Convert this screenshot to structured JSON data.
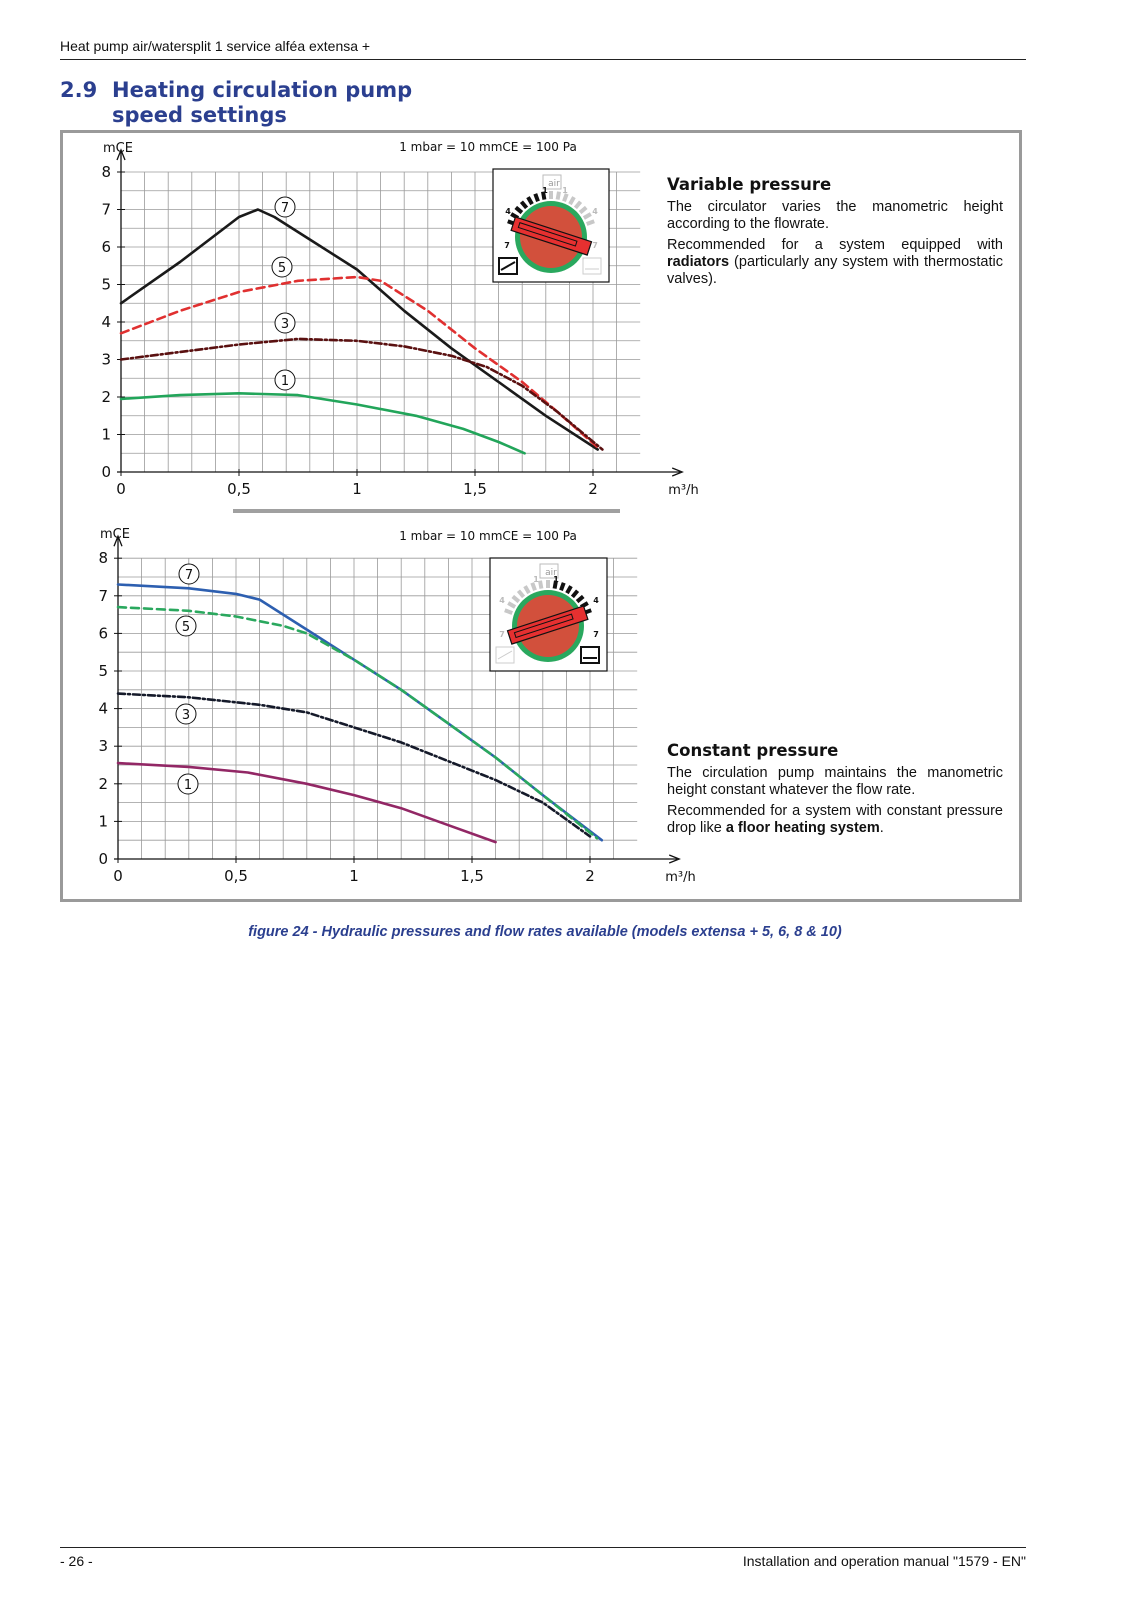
{
  "header": {
    "title": "Heat pump air/watersplit 1 service alféa extensa +"
  },
  "section": {
    "number": "2.9",
    "title_line1": "Heating circulation pump",
    "title_line2": "speed settings"
  },
  "variable": {
    "heading": "Variable pressure",
    "p1": "The circulator varies the manometric height according to the flowrate.",
    "p2_pre": "Recommended for a system equipped with ",
    "p2_bold": "radiators",
    "p2_post": " (particularly any system with thermostatic valves)."
  },
  "constant": {
    "heading": "Constant pressure",
    "p1": "The circulation pump maintains the manometric height constant whatever the flow rate.",
    "p2_pre": "Recommended for a system with constant pressure drop like ",
    "p2_bold": "a floor heating system",
    "p2_post": "."
  },
  "caption": "figure 24 - Hydraulic pressures and flow rates available  (models extensa + 5, 6, 8 & 10)",
  "footer": {
    "left": "- 26 -",
    "right": "Installation and operation manual \"1579 - EN\""
  },
  "chart_data": [
    {
      "type": "line",
      "mode": "Variable pressure",
      "ylabel": "mCE",
      "xlabel": "m³/h",
      "note": "1 mbar = 10 mmCE = 100 Pa",
      "x_ticks": [
        "0",
        "0,5",
        "1",
        "1,5",
        "2"
      ],
      "y_ticks": [
        "0",
        "1",
        "2",
        "3",
        "4",
        "5",
        "6",
        "7",
        "8"
      ],
      "xlim": [
        0,
        2.2
      ],
      "ylim": [
        0,
        8
      ],
      "grid": true,
      "series": [
        {
          "name": "7",
          "color": "#1a1a1a",
          "dash": "solid",
          "points": [
            [
              0,
              4.5
            ],
            [
              0.25,
              5.6
            ],
            [
              0.5,
              6.8
            ],
            [
              0.58,
              7.0
            ],
            [
              0.65,
              6.8
            ],
            [
              0.8,
              6.2
            ],
            [
              1.0,
              5.4
            ],
            [
              1.2,
              4.3
            ],
            [
              1.4,
              3.3
            ],
            [
              1.6,
              2.4
            ],
            [
              1.8,
              1.5
            ],
            [
              2.02,
              0.6
            ]
          ]
        },
        {
          "name": "5",
          "color": "#e03030",
          "dash": "dashed",
          "points": [
            [
              0,
              3.7
            ],
            [
              0.25,
              4.3
            ],
            [
              0.5,
              4.8
            ],
            [
              0.75,
              5.1
            ],
            [
              1.0,
              5.2
            ],
            [
              1.1,
              5.1
            ],
            [
              1.3,
              4.3
            ],
            [
              1.5,
              3.3
            ],
            [
              1.7,
              2.4
            ],
            [
              1.85,
              1.6
            ],
            [
              2.03,
              0.6
            ]
          ]
        },
        {
          "name": "3",
          "color": "#5a1010",
          "dash": "dashdot",
          "points": [
            [
              0,
              3.0
            ],
            [
              0.25,
              3.2
            ],
            [
              0.5,
              3.4
            ],
            [
              0.75,
              3.55
            ],
            [
              1.0,
              3.5
            ],
            [
              1.2,
              3.35
            ],
            [
              1.4,
              3.1
            ],
            [
              1.55,
              2.8
            ],
            [
              1.7,
              2.3
            ],
            [
              1.85,
              1.6
            ],
            [
              2.04,
              0.6
            ]
          ]
        },
        {
          "name": "1",
          "color": "#22a55a",
          "dash": "solid",
          "points": [
            [
              0,
              1.95
            ],
            [
              0.25,
              2.05
            ],
            [
              0.5,
              2.1
            ],
            [
              0.75,
              2.05
            ],
            [
              1.0,
              1.8
            ],
            [
              1.25,
              1.5
            ],
            [
              1.45,
              1.15
            ],
            [
              1.6,
              0.8
            ],
            [
              1.71,
              0.5
            ]
          ]
        }
      ]
    },
    {
      "type": "line",
      "mode": "Constant pressure",
      "ylabel": "mCE",
      "xlabel": "m³/h",
      "note": "1 mbar = 10 mmCE = 100 Pa",
      "x_ticks": [
        "0",
        "0,5",
        "1",
        "1,5",
        "2"
      ],
      "y_ticks": [
        "0",
        "1",
        "2",
        "3",
        "4",
        "5",
        "6",
        "7",
        "8"
      ],
      "xlim": [
        0,
        2.2
      ],
      "ylim": [
        0,
        8
      ],
      "grid": true,
      "series": [
        {
          "name": "7",
          "color": "#2d5fb0",
          "dash": "solid",
          "points": [
            [
              0,
              7.3
            ],
            [
              0.3,
              7.2
            ],
            [
              0.5,
              7.05
            ],
            [
              0.6,
              6.9
            ],
            [
              0.7,
              6.5
            ],
            [
              0.8,
              6.1
            ],
            [
              1.0,
              5.3
            ],
            [
              1.2,
              4.5
            ],
            [
              1.4,
              3.6
            ],
            [
              1.6,
              2.7
            ],
            [
              1.8,
              1.7
            ],
            [
              2.05,
              0.5
            ]
          ]
        },
        {
          "name": "5",
          "color": "#2aa85e",
          "dash": "dashed",
          "points": [
            [
              0,
              6.7
            ],
            [
              0.3,
              6.6
            ],
            [
              0.5,
              6.45
            ],
            [
              0.7,
              6.2
            ],
            [
              0.8,
              6.0
            ],
            [
              1.0,
              5.3
            ],
            [
              1.2,
              4.5
            ],
            [
              1.4,
              3.6
            ],
            [
              1.6,
              2.7
            ],
            [
              1.8,
              1.7
            ],
            [
              2.03,
              0.55
            ]
          ]
        },
        {
          "name": "3",
          "color": "#151a2a",
          "dash": "dashdot",
          "points": [
            [
              0,
              4.4
            ],
            [
              0.3,
              4.3
            ],
            [
              0.6,
              4.1
            ],
            [
              0.8,
              3.9
            ],
            [
              1.0,
              3.5
            ],
            [
              1.2,
              3.1
            ],
            [
              1.4,
              2.6
            ],
            [
              1.6,
              2.1
            ],
            [
              1.8,
              1.5
            ],
            [
              2.0,
              0.6
            ]
          ]
        },
        {
          "name": "1",
          "color": "#922765",
          "dash": "solid",
          "points": [
            [
              0,
              2.55
            ],
            [
              0.3,
              2.45
            ],
            [
              0.55,
              2.3
            ],
            [
              0.8,
              2.0
            ],
            [
              1.0,
              1.7
            ],
            [
              1.2,
              1.35
            ],
            [
              1.4,
              0.9
            ],
            [
              1.6,
              0.45
            ]
          ]
        }
      ]
    }
  ],
  "dials": [
    {
      "marks": [
        "1",
        "4",
        "7",
        "1",
        "4",
        "7"
      ],
      "label": "air"
    },
    {
      "marks": [
        "1",
        "4",
        "7",
        "1",
        "4",
        "7"
      ],
      "label": "air"
    }
  ]
}
